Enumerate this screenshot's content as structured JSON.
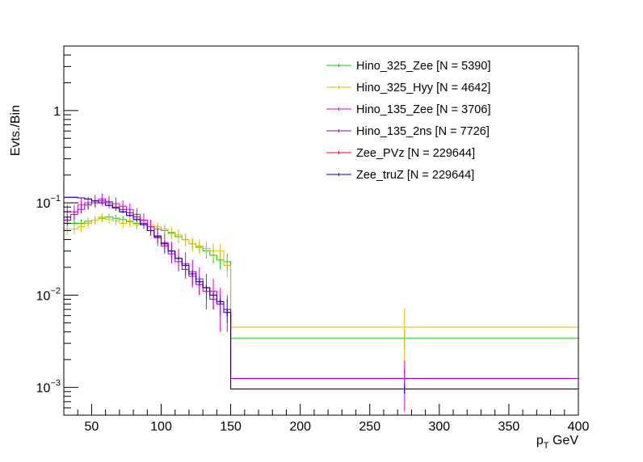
{
  "chart_data": {
    "type": "line",
    "style": "step-histogram-with-error-bars",
    "title": "",
    "xlabel": "p",
    "xlabel_sub": "T",
    "xlabel_unit": "GeV",
    "ylabel": "Evts./Bin",
    "xlim": [
      30,
      400
    ],
    "ylim": [
      0.0005,
      5
    ],
    "yscale": "log",
    "grid": false,
    "legend_position": "top-right",
    "x_ticks": [
      50,
      100,
      150,
      200,
      250,
      300,
      350,
      400
    ],
    "x_tick_labels": [
      "50",
      "100",
      "150",
      "200",
      "250",
      "300",
      "350",
      "400"
    ],
    "y_ticks": [
      0.001,
      0.01,
      0.1,
      1
    ],
    "y_tick_labels": [
      {
        "base": "10",
        "exp": "−3"
      },
      {
        "base": "10",
        "exp": "−2"
      },
      {
        "base": "10",
        "exp": "−1"
      },
      {
        "base": "1",
        "exp": ""
      }
    ],
    "bin_edges": [
      30,
      35,
      40,
      45,
      50,
      55,
      60,
      65,
      70,
      75,
      80,
      85,
      90,
      95,
      100,
      105,
      110,
      115,
      120,
      125,
      130,
      135,
      140,
      145,
      150,
      400
    ],
    "series": [
      {
        "name": "Hino_325_Zee [N = 5390]",
        "color": "#00cc00",
        "values": [
          0.06,
          0.06,
          0.06,
          0.063,
          0.065,
          0.068,
          0.07,
          0.068,
          0.066,
          0.063,
          0.06,
          0.058,
          0.055,
          0.052,
          0.05,
          0.047,
          0.043,
          0.04,
          0.036,
          0.033,
          0.03,
          0.027,
          0.024,
          0.023,
          0.0034
        ],
        "errors": [
          0.006,
          0.006,
          0.006,
          0.006,
          0.006,
          0.006,
          0.006,
          0.006,
          0.006,
          0.006,
          0.006,
          0.006,
          0.006,
          0.006,
          0.006,
          0.006,
          0.006,
          0.006,
          0.005,
          0.005,
          0.005,
          0.005,
          0.005,
          0.005,
          0.0008
        ]
      },
      {
        "name": "Hino_325_Hyy [N = 4642]",
        "color": "#e6b800",
        "values": [
          0.052,
          0.052,
          0.055,
          0.06,
          0.065,
          0.07,
          0.066,
          0.064,
          0.06,
          0.062,
          0.058,
          0.06,
          0.058,
          0.055,
          0.052,
          0.048,
          0.045,
          0.04,
          0.036,
          0.034,
          0.032,
          0.03,
          0.03,
          0.021,
          0.0045
        ],
        "errors": [
          0.007,
          0.007,
          0.007,
          0.007,
          0.007,
          0.007,
          0.007,
          0.007,
          0.007,
          0.007,
          0.007,
          0.007,
          0.007,
          0.007,
          0.007,
          0.007,
          0.007,
          0.006,
          0.006,
          0.006,
          0.006,
          0.006,
          0.006,
          0.005,
          0.0027
        ]
      },
      {
        "name": "Hino_135_Zee [N = 3706]",
        "color": "#dd00dd",
        "values": [
          0.08,
          0.08,
          0.095,
          0.1,
          0.105,
          0.11,
          0.103,
          0.098,
          0.092,
          0.085,
          0.075,
          0.065,
          0.055,
          0.044,
          0.037,
          0.03,
          0.025,
          0.022,
          0.018,
          0.015,
          0.012,
          0.011,
          0.008,
          0.007,
          0.00125
        ],
        "errors": [
          0.015,
          0.015,
          0.016,
          0.016,
          0.017,
          0.017,
          0.016,
          0.016,
          0.015,
          0.014,
          0.013,
          0.012,
          0.011,
          0.01,
          0.009,
          0.008,
          0.007,
          0.007,
          0.006,
          0.005,
          0.005,
          0.004,
          0.004,
          0.003,
          0.0007
        ]
      },
      {
        "name": "Hino_135_2ns [N = 7726]",
        "color": "#9900cc",
        "values": [
          0.065,
          0.075,
          0.085,
          0.095,
          0.1,
          0.105,
          0.1,
          0.09,
          0.085,
          0.078,
          0.07,
          0.06,
          0.05,
          0.042,
          0.034,
          0.028,
          0.023,
          0.019,
          0.016,
          0.013,
          0.011,
          0.009,
          0.008,
          0.007,
          0.00125
        ],
        "errors": [
          0.008,
          0.008,
          0.008,
          0.009,
          0.009,
          0.009,
          0.009,
          0.008,
          0.008,
          0.008,
          0.007,
          0.007,
          0.006,
          0.005,
          0.005,
          0.004,
          0.004,
          0.003,
          0.003,
          0.003,
          0.002,
          0.002,
          0.002,
          0.002,
          0.0003
        ]
      },
      {
        "name": "Zee_PVz [N = 229644]",
        "color": "#ff0000",
        "values": [
          0.115,
          0.115,
          0.113,
          0.11,
          0.105,
          0.1,
          0.094,
          0.088,
          0.08,
          0.073,
          0.066,
          0.058,
          0.05,
          0.043,
          0.036,
          0.03,
          0.025,
          0.021,
          0.017,
          0.014,
          0.012,
          0.01,
          0.0085,
          0.0065,
          0.00096
        ],
        "errors": [
          0.001,
          0.001,
          0.001,
          0.001,
          0.001,
          0.001,
          0.001,
          0.001,
          0.001,
          0.001,
          0.001,
          0.001,
          0.001,
          0.001,
          0.001,
          0.001,
          0.001,
          0.001,
          0.0008,
          0.0008,
          0.0008,
          0.0006,
          0.0006,
          0.0006,
          0.0001
        ]
      },
      {
        "name": "Zee_truZ [N = 229644]",
        "color": "#0000bb",
        "values": [
          0.115,
          0.115,
          0.113,
          0.11,
          0.105,
          0.1,
          0.094,
          0.088,
          0.08,
          0.073,
          0.066,
          0.058,
          0.05,
          0.043,
          0.036,
          0.03,
          0.025,
          0.021,
          0.017,
          0.014,
          0.012,
          0.01,
          0.0085,
          0.0065,
          0.00096
        ],
        "errors": [
          0.001,
          0.001,
          0.001,
          0.001,
          0.001,
          0.001,
          0.001,
          0.001,
          0.001,
          0.001,
          0.001,
          0.001,
          0.001,
          0.001,
          0.001,
          0.001,
          0.001,
          0.001,
          0.0008,
          0.0008,
          0.0008,
          0.0006,
          0.0006,
          0.0006,
          0.0001
        ]
      }
    ]
  }
}
